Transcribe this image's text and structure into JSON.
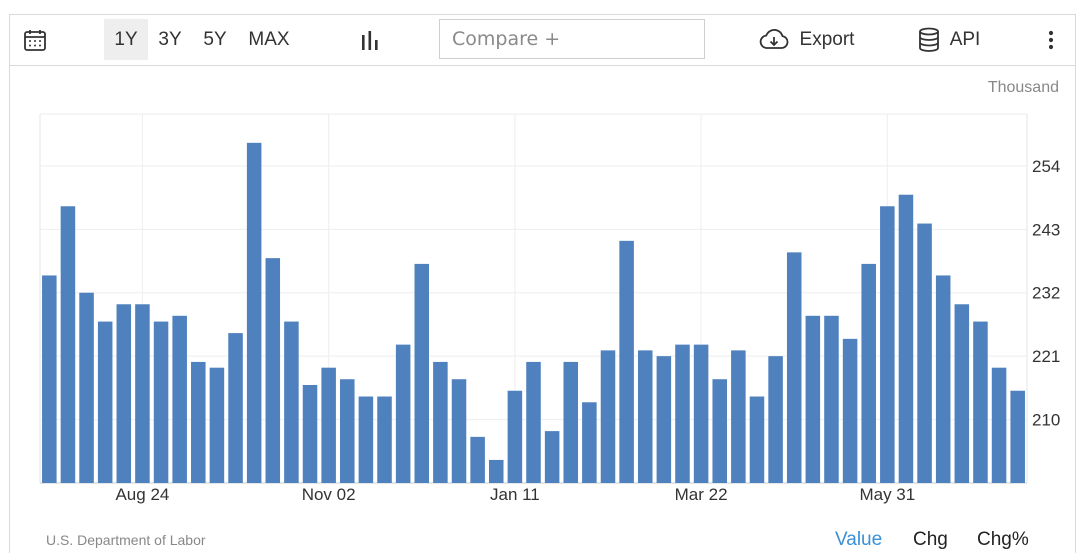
{
  "toolbar": {
    "ranges": [
      "1Y",
      "3Y",
      "5Y",
      "MAX"
    ],
    "active_range": "1Y",
    "compare_placeholder": "Compare +",
    "export_label": "Export",
    "api_label": "API"
  },
  "unit_label": "Thousand",
  "source_label": "U.S. Department of Labor",
  "view_tabs": [
    "Value",
    "Chg",
    "Chg%"
  ],
  "active_view": "Value",
  "colors": {
    "bar": "#4e81bd",
    "active_tab": "#3a8fd8"
  },
  "chart_data": {
    "type": "bar",
    "title": "",
    "xlabel": "",
    "ylabel": "",
    "unit": "Thousand",
    "ylim": [
      199,
      263
    ],
    "y_ticks": [
      210,
      221,
      232,
      243,
      254
    ],
    "x_tick_labels": [
      "Aug 24",
      "Nov 02",
      "Jan 11",
      "Mar 22",
      "May 31"
    ],
    "x_tick_bar_index": [
      5,
      15,
      25,
      35,
      45
    ],
    "grid": true,
    "values": [
      235,
      247,
      232,
      227,
      230,
      230,
      227,
      228,
      220,
      219,
      225,
      258,
      238,
      227,
      216,
      219,
      217,
      214,
      214,
      223,
      237,
      220,
      217,
      207,
      203,
      215,
      220,
      208,
      220,
      213,
      222,
      241,
      222,
      221,
      223,
      223,
      217,
      222,
      214,
      221,
      239,
      228,
      228,
      224,
      237,
      247,
      249,
      244,
      235,
      230,
      227,
      219,
      215
    ]
  }
}
